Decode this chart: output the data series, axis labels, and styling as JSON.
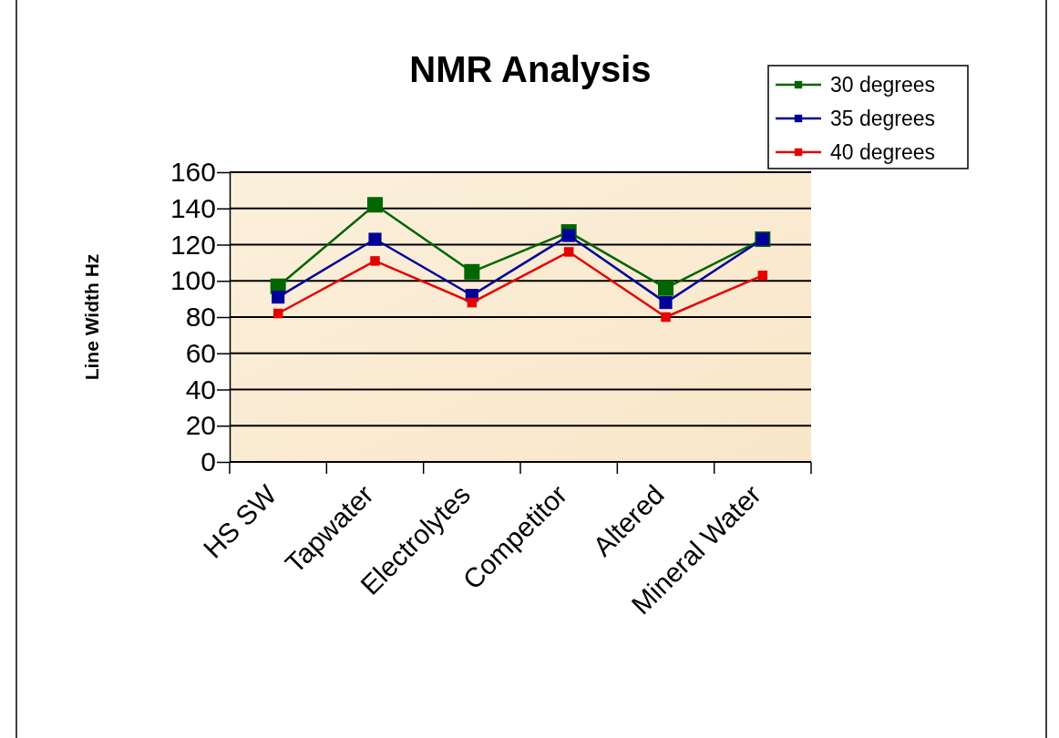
{
  "chart_data": {
    "type": "line",
    "title": "NMR Analysis",
    "ylabel": "Line Width Hz",
    "categories": [
      "HS SW",
      "Tapwater",
      "Electrolytes",
      "Competitor",
      "Altered",
      "Mineral Water"
    ],
    "series": [
      {
        "name": "30 degrees",
        "color": "#006600",
        "values": [
          97,
          142,
          105,
          127,
          96,
          123
        ]
      },
      {
        "name": "35 degrees",
        "color": "#000099",
        "values": [
          91,
          123,
          92,
          125,
          88,
          123
        ]
      },
      {
        "name": "40 degrees",
        "color": "#e60000",
        "values": [
          82,
          111,
          88,
          116,
          80,
          103
        ]
      }
    ],
    "ylim": [
      0,
      160
    ],
    "yticks": [
      0,
      20,
      40,
      60,
      80,
      100,
      120,
      140,
      160
    ],
    "grid": "y",
    "legend": "top right",
    "marker": "square",
    "line_style": "solid"
  }
}
